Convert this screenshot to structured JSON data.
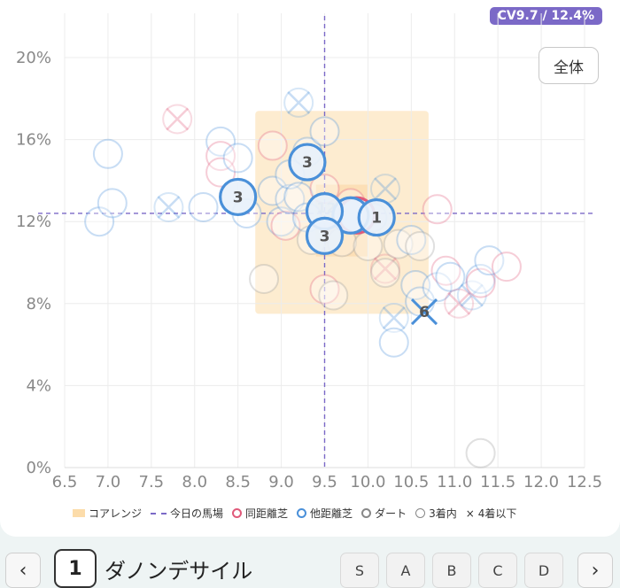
{
  "badge": "CV9.7 / 12.4%",
  "zen_button": "全体",
  "chart_data": {
    "type": "scatter",
    "xlim": [
      6.5,
      12.5
    ],
    "ylim": [
      0,
      20
    ],
    "x_ticks": [
      "6.5",
      "7.0",
      "7.5",
      "8.0",
      "8.5",
      "9.0",
      "9.5",
      "10.0",
      "10.5",
      "11.0",
      "11.5",
      "12.0",
      "12.5"
    ],
    "y_ticks": [
      "0%",
      "4%",
      "8%",
      "12%",
      "16%",
      "20%"
    ],
    "y_tick_values": [
      0,
      4,
      8,
      12,
      16,
      20
    ],
    "reference": {
      "x": 9.5,
      "y": 12.4
    },
    "core_range": {
      "x": [
        8.7,
        10.7
      ],
      "y": [
        7.5,
        17.4
      ]
    },
    "core_inner": {
      "x": [
        9.4,
        10.0
      ],
      "y": [
        10.3,
        13.8
      ]
    },
    "colors": {
      "same": "#e05a7a",
      "other": "#4a90d9",
      "dirt": "#999999",
      "core": "#fcdcaa",
      "ref": "#7b69c7",
      "label": "#555555"
    },
    "faded_points": [
      {
        "x": 6.9,
        "y": 12.0,
        "k": "other",
        "m": "o"
      },
      {
        "x": 7.0,
        "y": 15.3,
        "k": "other",
        "m": "o"
      },
      {
        "x": 7.05,
        "y": 12.9,
        "k": "other",
        "m": "o"
      },
      {
        "x": 7.8,
        "y": 17.0,
        "k": "same",
        "m": "x"
      },
      {
        "x": 7.7,
        "y": 12.7,
        "k": "other",
        "m": "x"
      },
      {
        "x": 8.1,
        "y": 12.7,
        "k": "other",
        "m": "o"
      },
      {
        "x": 8.3,
        "y": 15.9,
        "k": "other",
        "m": "o"
      },
      {
        "x": 8.3,
        "y": 15.2,
        "k": "same",
        "m": "o"
      },
      {
        "x": 8.3,
        "y": 14.4,
        "k": "same",
        "m": "o"
      },
      {
        "x": 8.5,
        "y": 15.1,
        "k": "other",
        "m": "o"
      },
      {
        "x": 8.6,
        "y": 12.4,
        "k": "other",
        "m": "o"
      },
      {
        "x": 8.8,
        "y": 9.2,
        "k": "dirt",
        "m": "o"
      },
      {
        "x": 8.9,
        "y": 13.5,
        "k": "other",
        "m": "o"
      },
      {
        "x": 8.9,
        "y": 15.7,
        "k": "same",
        "m": "o"
      },
      {
        "x": 9.0,
        "y": 12.0,
        "k": "other",
        "m": "o"
      },
      {
        "x": 9.05,
        "y": 11.8,
        "k": "same",
        "m": "o"
      },
      {
        "x": 9.1,
        "y": 13.1,
        "k": "other",
        "m": "o"
      },
      {
        "x": 9.1,
        "y": 14.3,
        "k": "other",
        "m": "o"
      },
      {
        "x": 9.2,
        "y": 17.8,
        "k": "other",
        "m": "x"
      },
      {
        "x": 9.2,
        "y": 13.2,
        "k": "other",
        "m": "o"
      },
      {
        "x": 9.3,
        "y": 15.4,
        "k": "other",
        "m": "o"
      },
      {
        "x": 9.3,
        "y": 12.2,
        "k": "other",
        "m": "o"
      },
      {
        "x": 9.35,
        "y": 11.1,
        "k": "dirt",
        "m": "o"
      },
      {
        "x": 9.5,
        "y": 16.4,
        "k": "other",
        "m": "o"
      },
      {
        "x": 9.5,
        "y": 13.6,
        "k": "same",
        "m": "o"
      },
      {
        "x": 9.5,
        "y": 8.7,
        "k": "same",
        "m": "o"
      },
      {
        "x": 9.6,
        "y": 8.4,
        "k": "dirt",
        "m": "o"
      },
      {
        "x": 9.7,
        "y": 11.0,
        "k": "dirt",
        "m": "o"
      },
      {
        "x": 9.8,
        "y": 12.9,
        "k": "same",
        "m": "o"
      },
      {
        "x": 10.0,
        "y": 10.8,
        "k": "dirt",
        "m": "o"
      },
      {
        "x": 10.05,
        "y": 12.2,
        "k": "other",
        "m": "o"
      },
      {
        "x": 10.2,
        "y": 13.6,
        "k": "other",
        "m": "x"
      },
      {
        "x": 10.2,
        "y": 9.7,
        "k": "same",
        "m": "x"
      },
      {
        "x": 10.2,
        "y": 9.5,
        "k": "dirt",
        "m": "o"
      },
      {
        "x": 10.3,
        "y": 7.3,
        "k": "other",
        "m": "x"
      },
      {
        "x": 10.3,
        "y": 6.1,
        "k": "other",
        "m": "o"
      },
      {
        "x": 10.35,
        "y": 10.9,
        "k": "dirt",
        "m": "o"
      },
      {
        "x": 10.5,
        "y": 11.1,
        "k": "other",
        "m": "o"
      },
      {
        "x": 10.55,
        "y": 8.9,
        "k": "other",
        "m": "o"
      },
      {
        "x": 10.6,
        "y": 8.1,
        "k": "other",
        "m": "o"
      },
      {
        "x": 10.6,
        "y": 10.8,
        "k": "dirt",
        "m": "o"
      },
      {
        "x": 10.8,
        "y": 12.6,
        "k": "same",
        "m": "o"
      },
      {
        "x": 10.8,
        "y": 8.8,
        "k": "other",
        "m": "o"
      },
      {
        "x": 10.9,
        "y": 9.6,
        "k": "same",
        "m": "o"
      },
      {
        "x": 10.95,
        "y": 9.3,
        "k": "other",
        "m": "o"
      },
      {
        "x": 11.05,
        "y": 8.0,
        "k": "same",
        "m": "x"
      },
      {
        "x": 11.2,
        "y": 8.4,
        "k": "other",
        "m": "x"
      },
      {
        "x": 11.3,
        "y": 9.2,
        "k": "other",
        "m": "o"
      },
      {
        "x": 11.3,
        "y": 9.0,
        "k": "same",
        "m": "o"
      },
      {
        "x": 11.4,
        "y": 10.1,
        "k": "other",
        "m": "o"
      },
      {
        "x": 11.6,
        "y": 9.8,
        "k": "same",
        "m": "o"
      },
      {
        "x": 11.3,
        "y": 0.7,
        "k": "dirt",
        "m": "o"
      }
    ],
    "faded_labels": [
      {
        "x": 9.52,
        "y": 12.7,
        "text": "12"
      }
    ],
    "highlight_points": [
      {
        "x": 9.87,
        "y": 12.3,
        "label": "",
        "k": "same",
        "m": "o"
      },
      {
        "x": 9.8,
        "y": 12.3,
        "label": "",
        "k": "other",
        "m": "o"
      },
      {
        "x": 8.5,
        "y": 13.2,
        "label": "3",
        "k": "other",
        "m": "o"
      },
      {
        "x": 9.3,
        "y": 14.9,
        "label": "3",
        "k": "other",
        "m": "o"
      },
      {
        "x": 9.5,
        "y": 12.5,
        "label": "",
        "k": "other",
        "m": "o"
      },
      {
        "x": 9.5,
        "y": 11.3,
        "label": "3",
        "k": "other",
        "m": "o"
      },
      {
        "x": 10.1,
        "y": 12.2,
        "label": "1",
        "k": "other",
        "m": "o"
      },
      {
        "x": 10.65,
        "y": 7.6,
        "label": "6",
        "k": "other",
        "m": "x"
      }
    ]
  },
  "legend": {
    "core": "コアレンジ",
    "ref": "今日の馬場",
    "same": "同距離芝",
    "other": "他距離芝",
    "dirt": "ダート",
    "top3": "3着内",
    "below4": "4着以下"
  },
  "bottom": {
    "prev": "‹",
    "next": "›",
    "horse_number": "1",
    "horse_name": "ダノンデサイル",
    "grades": [
      "S",
      "A",
      "B",
      "C",
      "D"
    ]
  }
}
